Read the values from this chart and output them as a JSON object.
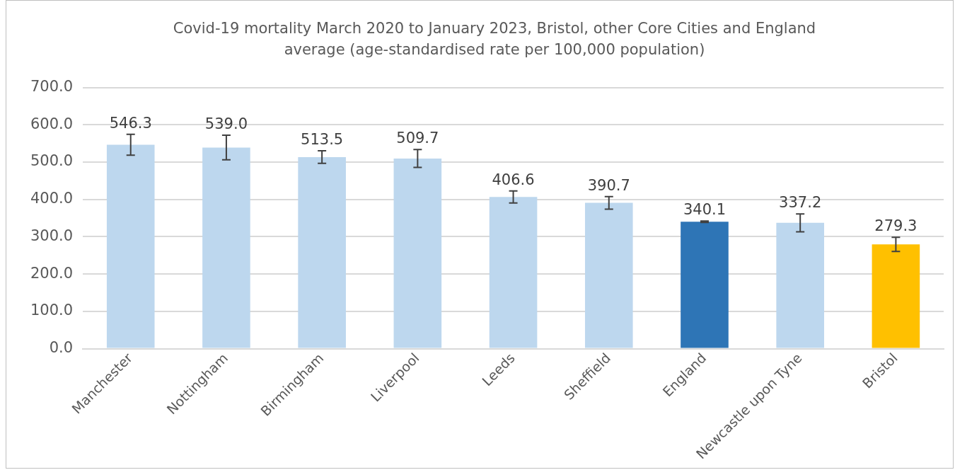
{
  "chart_data": {
    "type": "bar",
    "title": "Covid-19 mortality March 2020 to January 2023, Bristol, other Core Cities and England average (age-standardised rate per 100,000 population)",
    "categories": [
      "Manchester",
      "Nottingham",
      "Birmingham",
      "Liverpool",
      "Leeds",
      "Sheffield",
      "England",
      "Newcastle upon Tyne",
      "Bristol"
    ],
    "values": [
      546.3,
      539.0,
      513.5,
      509.7,
      406.6,
      390.7,
      340.1,
      337.2,
      279.3
    ],
    "value_labels": [
      "546.3",
      "539.0",
      "513.5",
      "509.7",
      "406.6",
      "390.7",
      "340.1",
      "337.2",
      "279.3"
    ],
    "errors": [
      28,
      33,
      17,
      24,
      16,
      17,
      2,
      24,
      19
    ],
    "colors": [
      "#bdd7ee",
      "#bdd7ee",
      "#bdd7ee",
      "#bdd7ee",
      "#bdd7ee",
      "#bdd7ee",
      "#2e75b6",
      "#bdd7ee",
      "#ffc000"
    ],
    "ylim": [
      0,
      700
    ],
    "yticks": [
      {
        "value": 0,
        "label": "0.0"
      },
      {
        "value": 100,
        "label": "100.0"
      },
      {
        "value": 200,
        "label": "200.0"
      },
      {
        "value": 300,
        "label": "300.0"
      },
      {
        "value": 400,
        "label": "400.0"
      },
      {
        "value": 500,
        "label": "500.0"
      },
      {
        "value": 600,
        "label": "600.0"
      },
      {
        "value": 700,
        "label": "700.0"
      }
    ],
    "grid": "y",
    "legend": false
  }
}
